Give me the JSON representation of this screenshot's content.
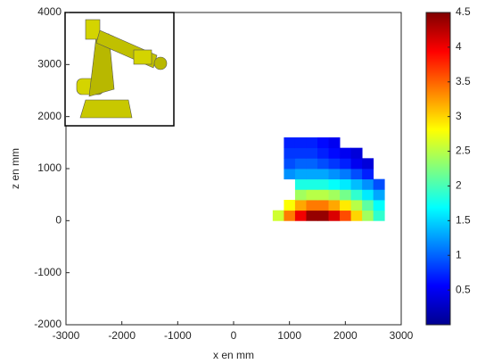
{
  "chart_data": {
    "type": "heatmap",
    "x": [
      800,
      1000,
      1200,
      1400,
      1600,
      1800,
      2000,
      2200,
      2400,
      2600,
      2800
    ],
    "y": [
      100,
      300,
      500,
      700,
      900,
      1100,
      1300,
      1500
    ],
    "cell": 200,
    "values": [
      [
        2.6,
        3.4,
        4.0,
        4.4,
        4.4,
        4.1,
        3.6,
        3.0,
        2.4,
        1.9,
        null
      ],
      [
        null,
        2.8,
        3.2,
        3.4,
        3.4,
        3.2,
        2.9,
        2.5,
        2.1,
        1.7,
        null
      ],
      [
        null,
        null,
        2.4,
        2.5,
        2.5,
        2.4,
        2.2,
        1.9,
        1.6,
        1.3,
        null
      ],
      [
        null,
        null,
        1.8,
        1.8,
        1.8,
        1.7,
        1.6,
        1.4,
        1.2,
        0.9,
        null
      ],
      [
        null,
        1.2,
        1.3,
        1.3,
        1.3,
        1.2,
        1.1,
        0.9,
        0.7,
        null,
        null
      ],
      [
        null,
        0.9,
        1.0,
        1.0,
        0.9,
        0.8,
        0.7,
        0.5,
        0.4,
        null,
        null
      ],
      [
        null,
        0.8,
        0.8,
        0.8,
        0.7,
        0.6,
        0.5,
        0.4,
        null,
        null,
        null
      ],
      [
        null,
        0.7,
        0.7,
        0.7,
        0.6,
        0.5,
        null,
        null,
        null,
        null,
        null
      ]
    ],
    "xlabel": "x en mm",
    "ylabel": "z en mm",
    "xlim": [
      -3000,
      3000
    ],
    "xticks": [
      -3000,
      -2000,
      -1000,
      0,
      1000,
      2000,
      3000
    ],
    "ylim": [
      -2000,
      4000
    ],
    "yticks": [
      -2000,
      -1000,
      0,
      1000,
      2000,
      3000,
      4000
    ],
    "colormap": "jet",
    "clim": [
      0,
      4.5
    ],
    "cticks": [
      0.5,
      1,
      1.5,
      2,
      2.5,
      3,
      3.5,
      4,
      4.5
    ]
  }
}
